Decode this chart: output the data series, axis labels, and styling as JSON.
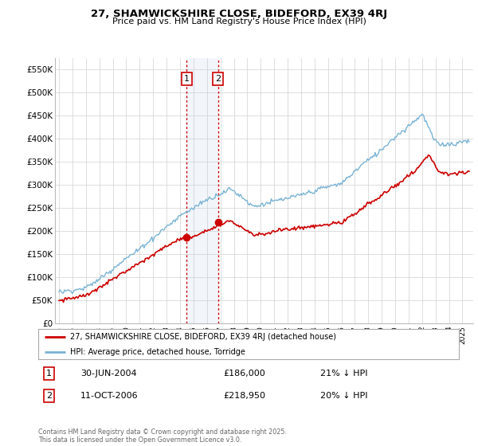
{
  "title_line1": "27, SHAMWICKSHIRE CLOSE, BIDEFORD, EX39 4RJ",
  "title_line2": "Price paid vs. HM Land Registry's House Price Index (HPI)",
  "background_color": "#ffffff",
  "plot_bg_color": "#ffffff",
  "grid_color": "#d8d8d8",
  "hpi_color": "#7ab3d4",
  "price_color": "#cc0000",
  "annotation_box_color": "#ddeaf7",
  "annotation_line_color": "#cc0000",
  "legend_label_price": "27, SHAMWICKSHIRE CLOSE, BIDEFORD, EX39 4RJ (detached house)",
  "legend_label_hpi": "HPI: Average price, detached house, Torridge",
  "transaction1_date": "30-JUN-2004",
  "transaction1_price": "£186,000",
  "transaction1_hpi": "21% ↓ HPI",
  "transaction2_date": "11-OCT-2006",
  "transaction2_price": "£218,950",
  "transaction2_hpi": "20% ↓ HPI",
  "copyright_text": "Contains HM Land Registry data © Crown copyright and database right 2025.\nThis data is licensed under the Open Government Licence v3.0.",
  "ylim_min": 0,
  "ylim_max": 575000,
  "yticks": [
    0,
    50000,
    100000,
    150000,
    200000,
    250000,
    300000,
    350000,
    400000,
    450000,
    500000,
    550000
  ],
  "ytick_labels": [
    "£0",
    "£50K",
    "£100K",
    "£150K",
    "£200K",
    "£250K",
    "£300K",
    "£350K",
    "£400K",
    "£450K",
    "£500K",
    "£550K"
  ],
  "t1_x": 2004.5,
  "t1_y": 186000,
  "t2_x": 2006.83,
  "t2_y": 218950,
  "xmin": 1994.7,
  "xmax": 2025.8
}
